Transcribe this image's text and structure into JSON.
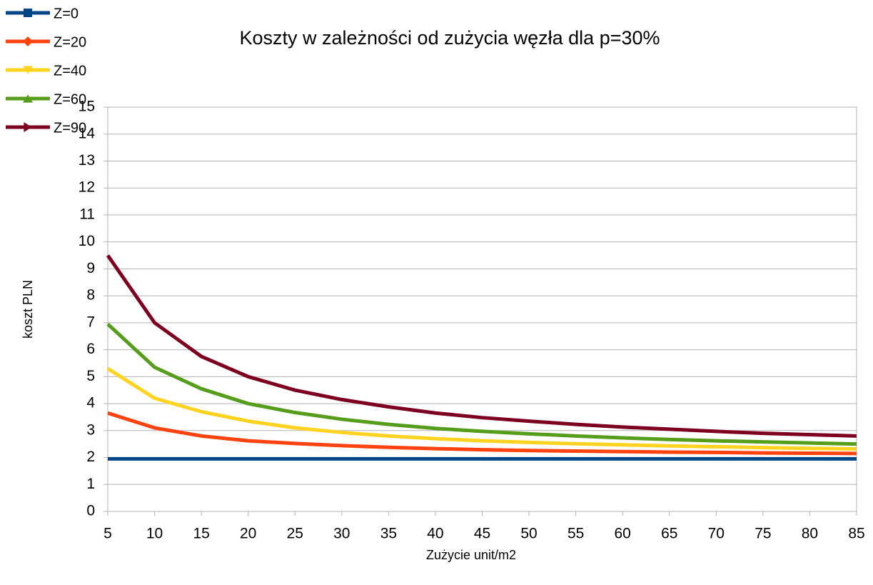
{
  "chart_data": {
    "type": "line",
    "title": "Koszty w zależności od zużycia węzła dla p=30%",
    "x_label": "Zużycie unit/m2",
    "y_label": "koszt PLN",
    "x": [
      5,
      10,
      15,
      20,
      25,
      30,
      35,
      40,
      45,
      50,
      55,
      60,
      65,
      70,
      75,
      80,
      85
    ],
    "series": [
      {
        "name": "Z=0",
        "color": "#004586",
        "marker": "square",
        "values": [
          1.95,
          1.95,
          1.95,
          1.95,
          1.95,
          1.95,
          1.95,
          1.95,
          1.95,
          1.95,
          1.95,
          1.95,
          1.95,
          1.95,
          1.95,
          1.95,
          1.95
        ]
      },
      {
        "name": "Z=20",
        "color": "#ff420e",
        "marker": "diamond",
        "values": [
          3.65,
          3.1,
          2.8,
          2.62,
          2.52,
          2.44,
          2.38,
          2.33,
          2.29,
          2.26,
          2.24,
          2.22,
          2.2,
          2.19,
          2.17,
          2.16,
          2.15
        ]
      },
      {
        "name": "Z=40",
        "color": "#ffd320",
        "marker": "triangle-down",
        "values": [
          5.3,
          4.2,
          3.7,
          3.35,
          3.1,
          2.93,
          2.8,
          2.7,
          2.62,
          2.56,
          2.51,
          2.47,
          2.43,
          2.4,
          2.37,
          2.34,
          2.32
        ]
      },
      {
        "name": "Z=60",
        "color": "#579d1c",
        "marker": "triangle-up",
        "values": [
          6.95,
          5.35,
          4.55,
          4.0,
          3.67,
          3.42,
          3.23,
          3.08,
          2.97,
          2.88,
          2.8,
          2.73,
          2.67,
          2.62,
          2.58,
          2.54,
          2.5
        ]
      },
      {
        "name": "Z=90",
        "color": "#7e0021",
        "marker": "triangle-right",
        "values": [
          9.5,
          7.0,
          5.75,
          5.0,
          4.5,
          4.15,
          3.88,
          3.65,
          3.48,
          3.35,
          3.23,
          3.13,
          3.05,
          2.97,
          2.9,
          2.85,
          2.8
        ]
      }
    ],
    "xlim": [
      5,
      85
    ],
    "xticks": [
      5,
      10,
      15,
      20,
      25,
      30,
      35,
      40,
      45,
      50,
      55,
      60,
      65,
      70,
      75,
      80,
      85
    ],
    "ylim": [
      0,
      15
    ],
    "yticks": [
      0,
      1,
      2,
      3,
      4,
      5,
      6,
      7,
      8,
      9,
      10,
      11,
      12,
      13,
      14,
      15
    ],
    "grid": true,
    "legend": "top-left"
  }
}
